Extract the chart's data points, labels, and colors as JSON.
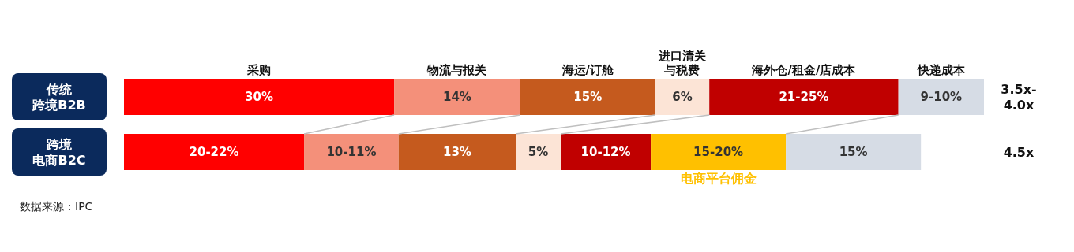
{
  "chart_data": {
    "type": "bar",
    "stacked": true,
    "orientation": "horizontal",
    "categories": [
      "传统跨境B2B",
      "跨境电商B2C"
    ],
    "series": [
      {
        "name": "采购",
        "color": "#ff0000",
        "values": [
          30,
          20
        ],
        "value_labels": [
          "30%",
          "20-22%"
        ]
      },
      {
        "name": "物流与报关",
        "color": "#f4907a",
        "values": [
          14,
          10.5
        ],
        "value_labels": [
          "14%",
          "10-11%"
        ]
      },
      {
        "name": "海运/订舱",
        "color": "#c55a1e",
        "values": [
          15,
          13
        ],
        "value_labels": [
          "15%",
          "13%"
        ]
      },
      {
        "name": "进口清关与税费",
        "color": "#fce4d6",
        "values": [
          6,
          5
        ],
        "value_labels": [
          "6%",
          "5%"
        ]
      },
      {
        "name": "海外仓/租金/店成本",
        "color": "#c00000",
        "values": [
          21,
          10
        ],
        "value_labels": [
          "21-25%",
          "10-12%"
        ]
      },
      {
        "name": "电商平台佣金",
        "color": "#ffc000",
        "values": [
          null,
          15
        ],
        "value_labels": [
          null,
          "15-20%"
        ]
      },
      {
        "name": "快递成本",
        "color": "#d6dce5",
        "values": [
          9.5,
          15
        ],
        "value_labels": [
          "9-10%",
          "15%"
        ]
      }
    ],
    "annotations": [
      "3.5x-4.0x",
      "4.5x",
      "数据来源：IPC"
    ]
  }
}
